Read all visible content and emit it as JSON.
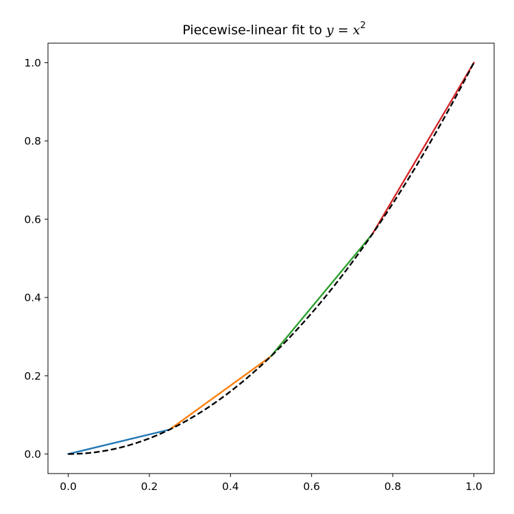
{
  "chart_data": {
    "type": "line",
    "title": {
      "prefix": "Piecewise-linear fit to ",
      "math_var_y": "y",
      "math_eq": " = ",
      "math_var_x": "x",
      "math_exp": "2"
    },
    "xlabel": "",
    "ylabel": "",
    "xlim": [
      -0.05,
      1.05
    ],
    "ylim": [
      -0.05,
      1.05
    ],
    "grid": false,
    "x_ticks": [
      "0.0",
      "0.2",
      "0.4",
      "0.6",
      "0.8",
      "1.0"
    ],
    "y_ticks": [
      "0.0",
      "0.2",
      "0.4",
      "0.6",
      "0.8",
      "1.0"
    ],
    "reference_curve": {
      "function": "x^2",
      "x_range": [
        0,
        1
      ],
      "color": "#000000",
      "style": "dashed"
    },
    "series": [
      {
        "x": [
          0.0,
          0.25
        ],
        "y": [
          0.0,
          0.0625
        ],
        "color": "#1f77b4"
      },
      {
        "x": [
          0.25,
          0.5
        ],
        "y": [
          0.0625,
          0.25
        ],
        "color": "#ff7f0e"
      },
      {
        "x": [
          0.5,
          0.75
        ],
        "y": [
          0.25,
          0.5625
        ],
        "color": "#2ca02c"
      },
      {
        "x": [
          0.75,
          1.0
        ],
        "y": [
          0.5625,
          1.0
        ],
        "color": "#d62728"
      }
    ]
  }
}
